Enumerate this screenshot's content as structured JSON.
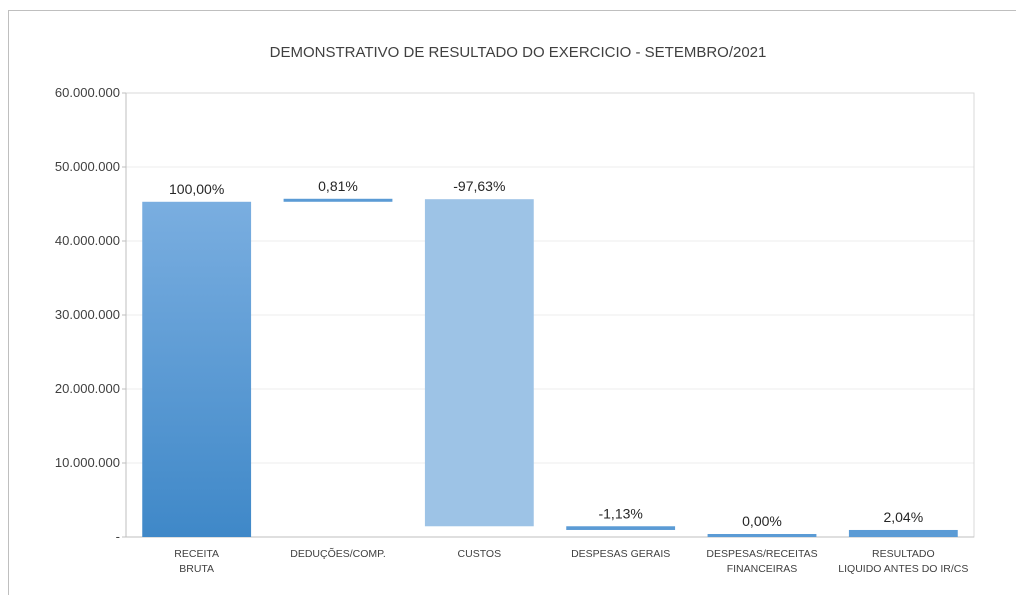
{
  "chart_data": {
    "type": "bar",
    "title": "DEMONSTRATIVO DE RESULTADO DO EXERCICIO - SETEMBRO/2021",
    "ylim": [
      0,
      60000000
    ],
    "yticks": [
      "-",
      "10.000.000",
      "20.000.000",
      "30.000.000",
      "40.000.000",
      "50.000.000",
      "60.000.000"
    ],
    "grid": true,
    "categories": [
      [
        "RECEITA",
        "BRUTA"
      ],
      [
        "DEDUÇÕES/COMP."
      ],
      [
        "CUSTOS"
      ],
      [
        "DESPESAS GERAIS"
      ],
      [
        "DESPESAS/RECEITAS",
        "FINANCEIRAS"
      ],
      [
        "RESULTADO",
        "LIQUIDO ANTES DO IR/CS"
      ]
    ],
    "bars": [
      {
        "base": 0,
        "top": 45300000,
        "label": "100,00%",
        "color_top": "#7aaee0",
        "color_bottom": "#3f88c8"
      },
      {
        "base": 45300000,
        "top": 45650000,
        "label": "0,81%",
        "color_top": "#5b9bd5",
        "color_bottom": "#5b9bd5"
      },
      {
        "base": 1450000,
        "top": 45650000,
        "label": "-97,63%",
        "color_top": "#9dc3e6",
        "color_bottom": "#9dc3e6"
      },
      {
        "base": 950000,
        "top": 1450000,
        "label": "-1,13%",
        "color_top": "#5b9bd5",
        "color_bottom": "#5b9bd5"
      },
      {
        "base": 0,
        "top": 100000,
        "label": "0,00%",
        "color_top": "#5b9bd5",
        "color_bottom": "#5b9bd5"
      },
      {
        "base": 0,
        "top": 950000,
        "label": "2,04%",
        "color_top": "#5b9bd5",
        "color_bottom": "#5b9bd5"
      }
    ]
  }
}
